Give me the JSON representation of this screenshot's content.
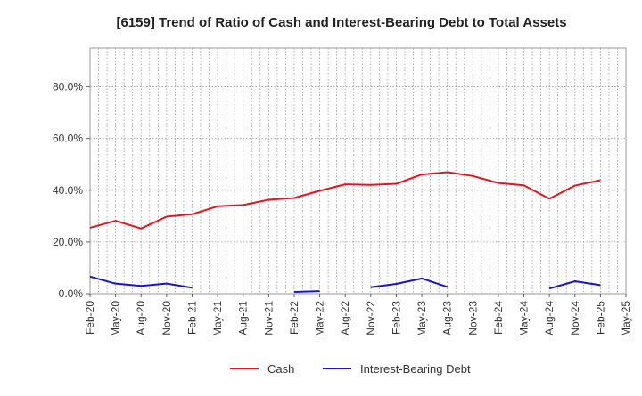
{
  "chart_data": {
    "type": "line",
    "title": "[6159]  Trend of Ratio of Cash and Interest-Bearing Debt to Total Assets",
    "xlabel": "",
    "ylabel": "",
    "x": [
      "Feb-20",
      "May-20",
      "Aug-20",
      "Nov-20",
      "Feb-21",
      "May-21",
      "Aug-21",
      "Nov-21",
      "Feb-22",
      "May-22",
      "Aug-22",
      "Nov-22",
      "Feb-23",
      "May-23",
      "Aug-23",
      "Nov-23",
      "Feb-24",
      "May-24",
      "Aug-24",
      "Nov-24",
      "Feb-25",
      "May-25"
    ],
    "y_ticks": [
      "0.0%",
      "20.0%",
      "40.0%",
      "60.0%",
      "80.0%"
    ],
    "ylim": [
      0,
      95
    ],
    "grid": true,
    "legend_position": "bottom",
    "series": [
      {
        "name": "Cash",
        "color": "#e8141b",
        "values": [
          25.5,
          28.2,
          25.2,
          29.8,
          30.7,
          33.8,
          34.3,
          36.3,
          37.0,
          39.8,
          42.3,
          42.1,
          42.5,
          46.1,
          47.0,
          45.5,
          42.8,
          41.9,
          36.7,
          41.8,
          43.9,
          null
        ]
      },
      {
        "name": "Interest-Bearing Debt",
        "color": "#1414d9",
        "values": [
          6.6,
          3.9,
          3.0,
          3.9,
          2.3,
          null,
          null,
          null,
          0.7,
          1.0,
          null,
          2.5,
          3.8,
          5.9,
          2.6,
          null,
          null,
          null,
          2.0,
          4.8,
          3.3,
          null
        ]
      }
    ]
  }
}
